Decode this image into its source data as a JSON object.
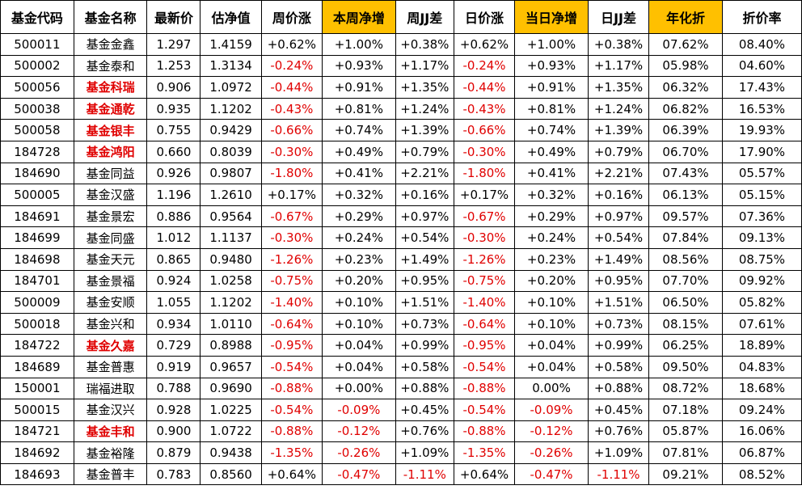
{
  "columns": [
    {
      "key": "code",
      "label": "基金代码",
      "highlight": false
    },
    {
      "key": "name",
      "label": "基金名称",
      "highlight": false
    },
    {
      "key": "price",
      "label": "最新价",
      "highlight": false
    },
    {
      "key": "nav",
      "label": "估净值",
      "highlight": false
    },
    {
      "key": "week_price",
      "label": "周价涨",
      "highlight": false
    },
    {
      "key": "week_nav",
      "label": "本周净增",
      "highlight": true
    },
    {
      "key": "week_diff",
      "label": "周JJ差",
      "highlight": false
    },
    {
      "key": "day_price",
      "label": "日价涨",
      "highlight": false
    },
    {
      "key": "day_nav",
      "label": "当日净增",
      "highlight": true
    },
    {
      "key": "day_diff",
      "label": "日JJ差",
      "highlight": false
    },
    {
      "key": "annual",
      "label": "年化折",
      "highlight": true
    },
    {
      "key": "discount",
      "label": "折价率",
      "highlight": false
    }
  ],
  "colors": {
    "header_highlight": "#ffc000",
    "negative": "#e00000",
    "positive": "#000000"
  },
  "rows": [
    [
      "500011",
      "基金金鑫",
      "1.297",
      "1.4159",
      "+0.62%",
      "+1.00%",
      "+0.38%",
      "+0.62%",
      "+1.00%",
      "+0.38%",
      "07.62%",
      "08.40%"
    ],
    [
      "500002",
      "基金泰和",
      "1.253",
      "1.3134",
      "-0.24%",
      "+0.93%",
      "+1.17%",
      "-0.24%",
      "+0.93%",
      "+1.17%",
      "05.98%",
      "04.60%"
    ],
    [
      "500056",
      "基金科瑞",
      "0.906",
      "1.0972",
      "-0.44%",
      "+0.91%",
      "+1.35%",
      "-0.44%",
      "+0.91%",
      "+1.35%",
      "06.32%",
      "17.43%"
    ],
    [
      "500038",
      "基金通乾",
      "0.935",
      "1.1202",
      "-0.43%",
      "+0.81%",
      "+1.24%",
      "-0.43%",
      "+0.81%",
      "+1.24%",
      "06.82%",
      "16.53%"
    ],
    [
      "500058",
      "基金银丰",
      "0.755",
      "0.9429",
      "-0.66%",
      "+0.74%",
      "+1.39%",
      "-0.66%",
      "+0.74%",
      "+1.39%",
      "06.39%",
      "19.93%"
    ],
    [
      "184728",
      "基金鸿阳",
      "0.660",
      "0.8039",
      "-0.30%",
      "+0.49%",
      "+0.79%",
      "-0.30%",
      "+0.49%",
      "+0.79%",
      "06.70%",
      "17.90%"
    ],
    [
      "184690",
      "基金同益",
      "0.926",
      "0.9807",
      "-1.80%",
      "+0.41%",
      "+2.21%",
      "-1.80%",
      "+0.41%",
      "+2.21%",
      "07.43%",
      "05.57%"
    ],
    [
      "500005",
      "基金汉盛",
      "1.196",
      "1.2610",
      "+0.17%",
      "+0.32%",
      "+0.16%",
      "+0.17%",
      "+0.32%",
      "+0.16%",
      "06.13%",
      "05.15%"
    ],
    [
      "184691",
      "基金景宏",
      "0.886",
      "0.9564",
      "-0.67%",
      "+0.29%",
      "+0.97%",
      "-0.67%",
      "+0.29%",
      "+0.97%",
      "09.57%",
      "07.36%"
    ],
    [
      "184699",
      "基金同盛",
      "1.012",
      "1.1137",
      "-0.30%",
      "+0.24%",
      "+0.54%",
      "-0.30%",
      "+0.24%",
      "+0.54%",
      "07.84%",
      "09.13%"
    ],
    [
      "184698",
      "基金天元",
      "0.865",
      "0.9480",
      "-1.26%",
      "+0.23%",
      "+1.49%",
      "-1.26%",
      "+0.23%",
      "+1.49%",
      "08.56%",
      "08.75%"
    ],
    [
      "184701",
      "基金景福",
      "0.924",
      "1.0258",
      "-0.75%",
      "+0.20%",
      "+0.95%",
      "-0.75%",
      "+0.20%",
      "+0.95%",
      "07.70%",
      "09.92%"
    ],
    [
      "500009",
      "基金安顺",
      "1.055",
      "1.1202",
      "-1.40%",
      "+0.10%",
      "+1.51%",
      "-1.40%",
      "+0.10%",
      "+1.51%",
      "06.50%",
      "05.82%"
    ],
    [
      "500018",
      "基金兴和",
      "0.934",
      "1.0110",
      "-0.64%",
      "+0.10%",
      "+0.73%",
      "-0.64%",
      "+0.10%",
      "+0.73%",
      "08.15%",
      "07.61%"
    ],
    [
      "184722",
      "基金久嘉",
      "0.729",
      "0.8988",
      "-0.95%",
      "+0.04%",
      "+0.99%",
      "-0.95%",
      "+0.04%",
      "+0.99%",
      "06.25%",
      "18.89%"
    ],
    [
      "184689",
      "基金普惠",
      "0.919",
      "0.9657",
      "-0.54%",
      "+0.04%",
      "+0.58%",
      "-0.54%",
      "+0.04%",
      "+0.58%",
      "09.50%",
      "04.83%"
    ],
    [
      "150001",
      "瑞福进取",
      "0.788",
      "0.9690",
      "-0.88%",
      "+0.00%",
      "+0.88%",
      "-0.88%",
      "0.00%",
      "+0.88%",
      "08.72%",
      "18.68%"
    ],
    [
      "500015",
      "基金汉兴",
      "0.928",
      "1.0225",
      "-0.54%",
      "-0.09%",
      "+0.45%",
      "-0.54%",
      "-0.09%",
      "+0.45%",
      "07.18%",
      "09.24%"
    ],
    [
      "184721",
      "基金丰和",
      "0.900",
      "1.0722",
      "-0.88%",
      "-0.12%",
      "+0.76%",
      "-0.88%",
      "-0.12%",
      "+0.76%",
      "05.87%",
      "16.06%"
    ],
    [
      "184692",
      "基金裕隆",
      "0.879",
      "0.9438",
      "-1.35%",
      "-0.26%",
      "+1.09%",
      "-1.35%",
      "-0.26%",
      "+1.09%",
      "07.81%",
      "06.87%"
    ],
    [
      "184693",
      "基金普丰",
      "0.783",
      "0.8560",
      "+0.64%",
      "-0.47%",
      "-1.11%",
      "+0.64%",
      "-0.47%",
      "-1.11%",
      "09.21%",
      "08.52%"
    ]
  ],
  "bold_name_rows": [
    2,
    3,
    4,
    5,
    14,
    18
  ]
}
